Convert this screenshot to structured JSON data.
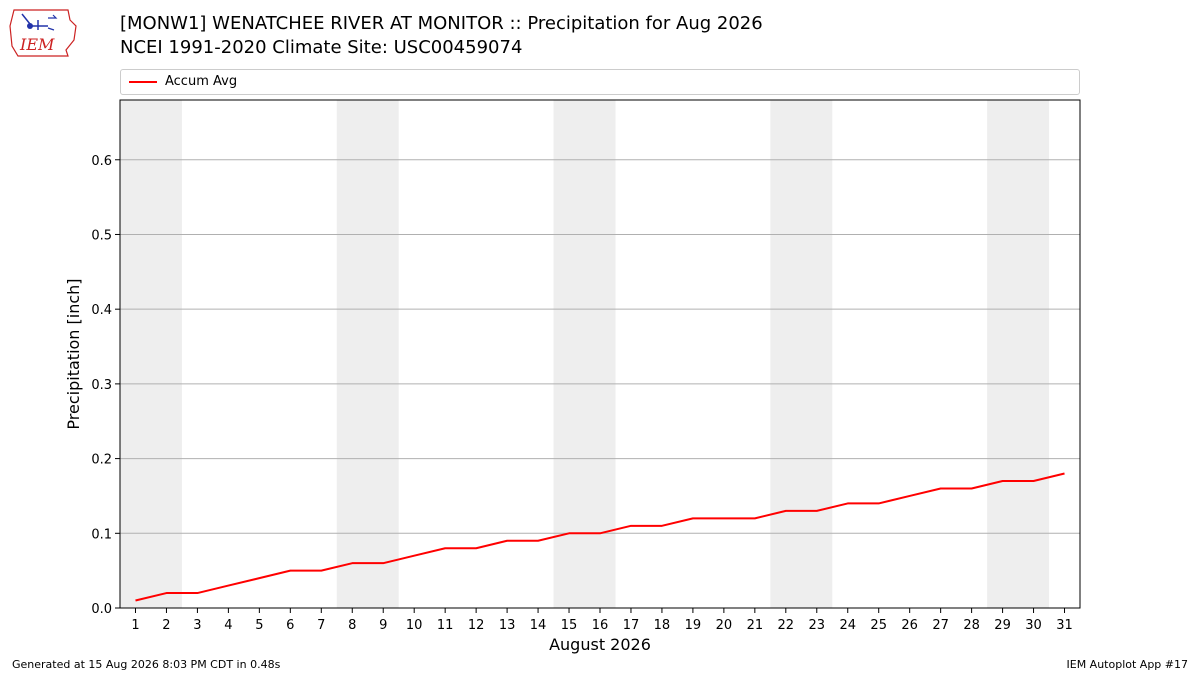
{
  "header": {
    "title_line1": "[MONW1] WENATCHEE RIVER  AT MONITOR :: Precipitation for Aug 2026",
    "title_line2": "NCEI 1991-2020 Climate Site: USC00459074",
    "logo_text": "IEM"
  },
  "footer": {
    "generated": "Generated at 15 Aug 2026 8:03 PM CDT in 0.48s",
    "app": "IEM Autoplot App #17"
  },
  "colors": {
    "series": "#ff0000",
    "weekend_band": "#eeeeee",
    "grid": "#b0b0b0",
    "logo": "#cc2222"
  },
  "chart_data": {
    "type": "line",
    "xlabel": "August 2026",
    "ylabel": "Precipitation [inch]",
    "xlim": [
      0.5,
      31.5
    ],
    "ylim": [
      0,
      0.68
    ],
    "x_ticks": [
      1,
      2,
      3,
      4,
      5,
      6,
      7,
      8,
      9,
      10,
      11,
      12,
      13,
      14,
      15,
      16,
      17,
      18,
      19,
      20,
      21,
      22,
      23,
      24,
      25,
      26,
      27,
      28,
      29,
      30,
      31
    ],
    "y_ticks": [
      0.0,
      0.1,
      0.2,
      0.3,
      0.4,
      0.5,
      0.6
    ],
    "y_tick_labels": [
      "0.0",
      "0.1",
      "0.2",
      "0.3",
      "0.4",
      "0.5",
      "0.6"
    ],
    "grid": "horizontal",
    "legend_placement": "top",
    "weekend_bands": [
      [
        1,
        2
      ],
      [
        8,
        9
      ],
      [
        15,
        16
      ],
      [
        22,
        23
      ],
      [
        29,
        30
      ]
    ],
    "series": [
      {
        "name": "Accum Avg",
        "x": [
          1,
          2,
          3,
          4,
          5,
          6,
          7,
          8,
          9,
          10,
          11,
          12,
          13,
          14,
          15,
          16,
          17,
          18,
          19,
          20,
          21,
          22,
          23,
          24,
          25,
          26,
          27,
          28,
          29,
          30,
          31
        ],
        "y": [
          0.01,
          0.02,
          0.02,
          0.03,
          0.04,
          0.05,
          0.05,
          0.06,
          0.06,
          0.07,
          0.08,
          0.08,
          0.09,
          0.09,
          0.1,
          0.1,
          0.11,
          0.11,
          0.12,
          0.12,
          0.12,
          0.13,
          0.13,
          0.14,
          0.14,
          0.15,
          0.16,
          0.16,
          0.17,
          0.17,
          0.18
        ]
      }
    ]
  }
}
